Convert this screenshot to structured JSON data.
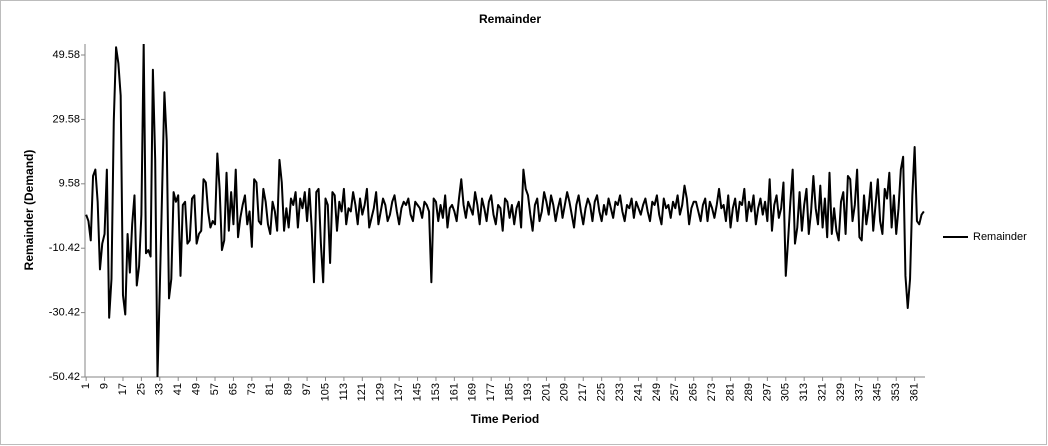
{
  "chart_data": {
    "type": "line",
    "title": "Remainder",
    "x_label": "Time Period",
    "y_label": "Remainder (Demand)",
    "categories": [
      1,
      null,
      null,
      null,
      null,
      null,
      null,
      null,
      9,
      null,
      null,
      null,
      null,
      null,
      null,
      null,
      17,
      null,
      null,
      null,
      null,
      null,
      null,
      null,
      25,
      null,
      null,
      null,
      null,
      null,
      null,
      null,
      33,
      null,
      null,
      null,
      null,
      null,
      null,
      null,
      41,
      null,
      null,
      null,
      null,
      null,
      null,
      null,
      49,
      null,
      null,
      null,
      null,
      null,
      null,
      null,
      57,
      null,
      null,
      null,
      null,
      null,
      null,
      null,
      65,
      null,
      null,
      null,
      null,
      null,
      null,
      null,
      73,
      null,
      null,
      null,
      null,
      null,
      null,
      null,
      81,
      null,
      null,
      null,
      null,
      null,
      null,
      null,
      89,
      null,
      null,
      null,
      null,
      null,
      null,
      null,
      97,
      null,
      null,
      null,
      null,
      null,
      null,
      null,
      105,
      null,
      null,
      null,
      null,
      null,
      null,
      null,
      113,
      null,
      null,
      null,
      null,
      null,
      null,
      null,
      121,
      null,
      null,
      null,
      null,
      null,
      null,
      null,
      129,
      null,
      null,
      null,
      null,
      null,
      null,
      null,
      137,
      null,
      null,
      null,
      null,
      null,
      null,
      null,
      145,
      null,
      null,
      null,
      null,
      null,
      null,
      null,
      153,
      null,
      null,
      null,
      null,
      null,
      null,
      null,
      161,
      null,
      null,
      null,
      null,
      null,
      null,
      null,
      169,
      null,
      null,
      null,
      null,
      null,
      null,
      null,
      177,
      null,
      null,
      null,
      null,
      null,
      null,
      null,
      185,
      null,
      null,
      null,
      null,
      null,
      null,
      null,
      193,
      null,
      null,
      null,
      null,
      null,
      null,
      null,
      201,
      null,
      null,
      null,
      null,
      null,
      null,
      null,
      209,
      null,
      null,
      null,
      null,
      null,
      null,
      null,
      217,
      null,
      null,
      null,
      null,
      null,
      null,
      null,
      225,
      null,
      null,
      null,
      null,
      null,
      null,
      null,
      233,
      null,
      null,
      null,
      null,
      null,
      null,
      null,
      241,
      null,
      null,
      null,
      null,
      null,
      null,
      null,
      249,
      null,
      null,
      null,
      null,
      null,
      null,
      null,
      257,
      null,
      null,
      null,
      null,
      null,
      null,
      null,
      265,
      null,
      null,
      null,
      null,
      null,
      null,
      null,
      273,
      null,
      null,
      null,
      null,
      null,
      null,
      null,
      281,
      null,
      null,
      null,
      null,
      null,
      null,
      null,
      289,
      null,
      null,
      null,
      null,
      null,
      null,
      null,
      297,
      null,
      null,
      null,
      null,
      null,
      null,
      null,
      305,
      null,
      null,
      null,
      null,
      null,
      null,
      null,
      313,
      null,
      null,
      null,
      null,
      null,
      null,
      null,
      321,
      null,
      null,
      null,
      null,
      null,
      null,
      null,
      329,
      null,
      null,
      null,
      null,
      null,
      null,
      null,
      337,
      null,
      null,
      null,
      null,
      null,
      null,
      null,
      345,
      null,
      null,
      null,
      null,
      null,
      null,
      null,
      353,
      null,
      null,
      null,
      null,
      null,
      null,
      null,
      361,
      null,
      null,
      null,
      null
    ],
    "series": [
      {
        "name": "Remainder",
        "color": "#000000",
        "values": [
          0,
          -2,
          -8,
          12,
          14,
          4,
          -17,
          -9,
          -6,
          14,
          -32,
          -20,
          29,
          52,
          47,
          37,
          -25,
          -31,
          -6,
          -18,
          -3,
          6,
          -22,
          -16,
          0,
          53,
          -12,
          -11,
          -13,
          45,
          17,
          -50.42,
          -23,
          7,
          38,
          23,
          -26,
          -20,
          7,
          4,
          6,
          -19,
          3,
          4,
          -9,
          -8,
          5,
          6,
          -9,
          -6,
          -5,
          11,
          10,
          1,
          -4,
          -2,
          -3,
          19,
          8,
          -11,
          -8,
          13,
          -5,
          7,
          -3,
          14,
          -7,
          -1,
          3,
          6,
          -3,
          1,
          -10,
          11,
          10,
          -2,
          -3,
          8,
          4,
          -3,
          -6,
          4,
          1,
          -5,
          17,
          10,
          -5,
          2,
          -4,
          5,
          3,
          7,
          -4,
          5,
          2,
          7,
          -2,
          8,
          -4,
          -21,
          7,
          8,
          -9,
          -21,
          5,
          3,
          -15,
          7,
          6,
          -5,
          4,
          1,
          8,
          -3,
          2,
          1,
          7,
          3,
          -3,
          5,
          0,
          3,
          8,
          -4,
          -1,
          2,
          7,
          -3,
          1,
          5,
          3,
          -2,
          0,
          4,
          6,
          1,
          -3,
          2,
          4,
          3,
          5,
          0,
          -2,
          4,
          3,
          2,
          -1,
          4,
          3,
          1,
          -21,
          5,
          4,
          -2,
          3,
          -1,
          6,
          -4,
          2,
          3,
          1,
          -2,
          5,
          11,
          3,
          -1,
          4,
          2,
          0,
          7,
          3,
          -3,
          5,
          2,
          -2,
          4,
          6,
          0,
          -3,
          3,
          2,
          -5,
          5,
          4,
          -1,
          3,
          -3,
          2,
          4,
          -4,
          14,
          8,
          6,
          0,
          -5,
          3,
          5,
          -2,
          1,
          7,
          4,
          0,
          6,
          3,
          -2,
          2,
          5,
          -1,
          3,
          7,
          4,
          0,
          -4,
          3,
          6,
          1,
          -3,
          2,
          5,
          3,
          -2,
          4,
          6,
          1,
          -2,
          3,
          0,
          5,
          2,
          -1,
          4,
          3,
          6,
          1,
          -2,
          3,
          2,
          5,
          -1,
          4,
          2,
          0,
          3,
          5,
          1,
          -2,
          4,
          3,
          6,
          0,
          -3,
          5,
          2,
          3,
          -1,
          4,
          2,
          6,
          0,
          3,
          9,
          5,
          -3,
          2,
          4,
          4,
          1,
          -2,
          3,
          5,
          -2,
          4,
          2,
          -1,
          3,
          8,
          2,
          3,
          -2,
          6,
          -4,
          2,
          5,
          -2,
          4,
          3,
          8,
          -2,
          4,
          1,
          6,
          -3,
          2,
          5,
          0,
          4,
          -2,
          11,
          -5,
          3,
          6,
          -1,
          2,
          10,
          -19,
          -8,
          4,
          14,
          -9,
          -4,
          7,
          -5,
          3,
          8,
          -6,
          1,
          12,
          2,
          -3,
          9,
          -4,
          5,
          -7,
          13,
          -6,
          2,
          -5,
          -8,
          4,
          7,
          -6,
          12,
          11,
          -2,
          3,
          14,
          -7,
          -8,
          6,
          -3,
          2,
          10,
          -5,
          3,
          11,
          -2,
          -6,
          8,
          5,
          13,
          -4,
          6,
          -6,
          2,
          14,
          18,
          -19,
          -29,
          -20,
          6,
          21,
          -2,
          -3,
          0,
          1
        ]
      }
    ],
    "ylim": [
      -50.42,
      53
    ],
    "yticks": [
      -50.42,
      -30.42,
      -10.42,
      9.58,
      29.58,
      49.58
    ],
    "grid": false,
    "legend": "right"
  }
}
